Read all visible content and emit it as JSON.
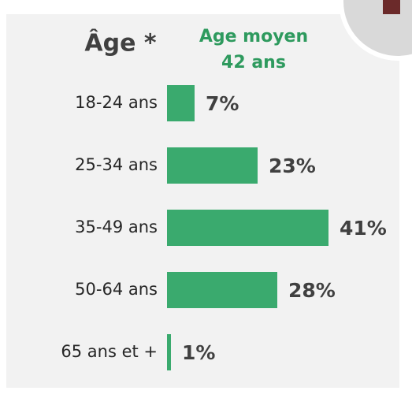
{
  "chart_data": {
    "type": "bar",
    "orientation": "horizontal",
    "title": "Âge *",
    "annotations": [
      "Age moyen",
      "42 ans"
    ],
    "categories": [
      "18-24 ans",
      "25-34 ans",
      "35-49 ans",
      "50-64 ans",
      "65 ans et +"
    ],
    "values": [
      7,
      23,
      41,
      28,
      1
    ],
    "value_labels": [
      "7%",
      "23%",
      "41%",
      "28%",
      "1%"
    ],
    "color": "#3aaa6e",
    "annotation_color": "#2e9a5e"
  }
}
